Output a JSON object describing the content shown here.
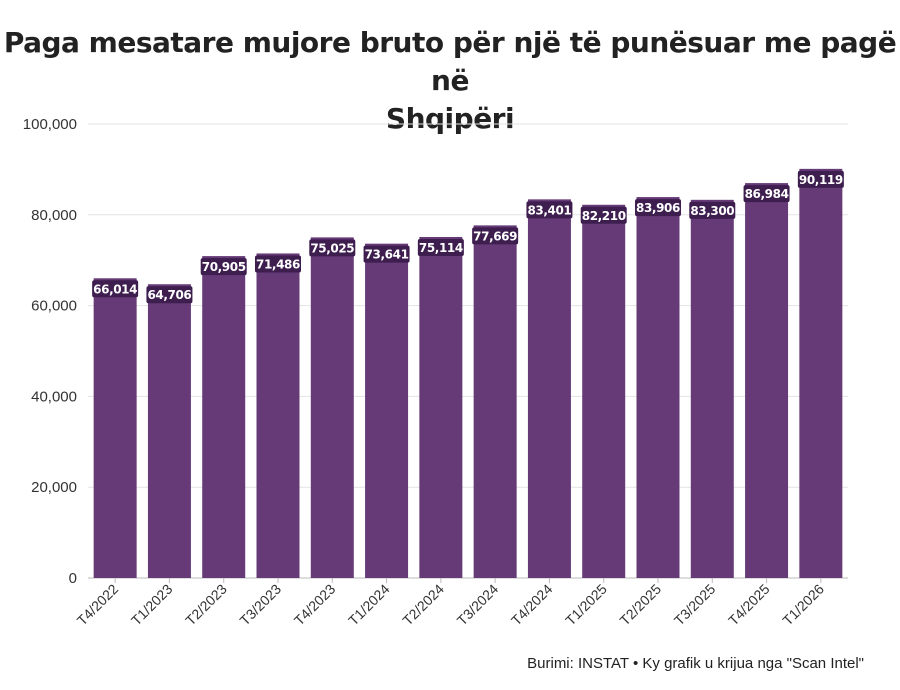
{
  "chart_data": {
    "type": "bar",
    "title_line1": "Paga mesatare mujore bruto për një të punësuar me pagë në",
    "title_line2": "Shqipëri",
    "categories": [
      "T4/2022",
      "T1/2023",
      "T2/2023",
      "T3/2023",
      "T4/2023",
      "T1/2024",
      "T2/2024",
      "T3/2024",
      "T4/2024",
      "T1/2025",
      "T2/2025",
      "T3/2025",
      "T4/2025",
      "T1/2026"
    ],
    "values": [
      66014,
      64706,
      70905,
      71486,
      75025,
      73641,
      75114,
      77669,
      83401,
      82210,
      83906,
      83300,
      86984,
      90119
    ],
    "value_labels": [
      "66,014",
      "64,706",
      "70,905",
      "71,486",
      "75,025",
      "73,641",
      "75,114",
      "77,669",
      "83,401",
      "82,210",
      "83,906",
      "83,300",
      "86,984",
      "90,119"
    ],
    "yticks": [
      0,
      20000,
      40000,
      60000,
      80000,
      100000
    ],
    "ytick_labels": [
      "0",
      "20,000",
      "40,000",
      "60,000",
      "80,000",
      "100,000"
    ],
    "ylim": [
      0,
      100000
    ],
    "xlabel": "",
    "ylabel": "",
    "grid": true,
    "bar_color": "#653a77",
    "source": "Burimi: INSTAT • Ky grafik u krijua nga \"Scan Intel\""
  }
}
